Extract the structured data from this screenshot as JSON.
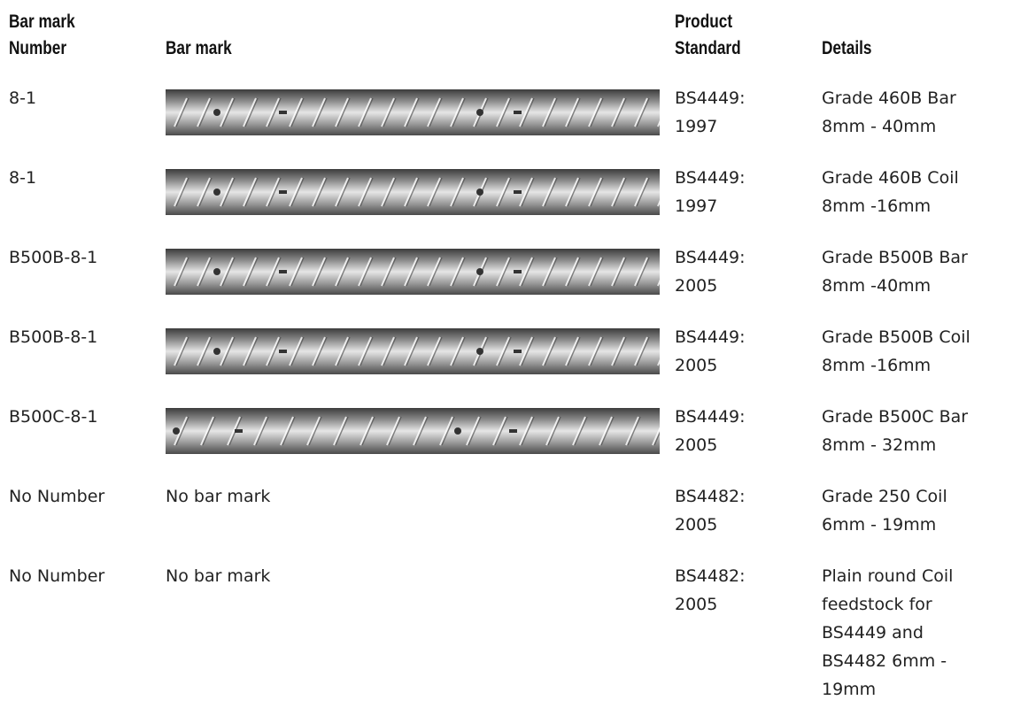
{
  "header": {
    "number": [
      "Bar mark",
      "Number"
    ],
    "bar_mark": [
      "Bar mark"
    ],
    "standard": [
      "Product",
      "Standard"
    ],
    "details": [
      "Details"
    ]
  },
  "rows": [
    {
      "number": "8-1",
      "standard": [
        "BS4449:",
        "1997"
      ],
      "details": [
        "Grade 460B Bar",
        "8mm - 40mm"
      ]
    },
    {
      "number": "8-1",
      "standard": [
        "BS4449:",
        "1997"
      ],
      "details": [
        "Grade 460B Coil",
        "8mm -16mm"
      ]
    },
    {
      "number": "B500B-8-1",
      "standard": [
        "BS4449:",
        "2005"
      ],
      "details": [
        "Grade B500B Bar",
        "8mm -40mm"
      ]
    },
    {
      "number": "B500B-8-1",
      "standard": [
        "BS4449:",
        "2005"
      ],
      "details": [
        "Grade B500B Coil",
        "8mm -16mm"
      ]
    },
    {
      "number": "B500C-8-1",
      "standard": [
        "BS4449:",
        "2005"
      ],
      "details": [
        "Grade B500C Bar",
        "8mm - 32mm"
      ]
    },
    {
      "number": "No Number",
      "bar_mark": "No bar mark",
      "standard": [
        "BS4482:",
        "2005"
      ],
      "details": [
        "Grade 250 Coil",
        "6mm - 19mm"
      ]
    },
    {
      "number": "No Number",
      "bar_mark": "No bar mark",
      "standard": [
        "BS4482:",
        "2005"
      ],
      "details": [
        "Plain round Coil",
        "feedstock for",
        "BS4449 and",
        "BS4482 6mm -",
        "19mm"
      ]
    }
  ]
}
